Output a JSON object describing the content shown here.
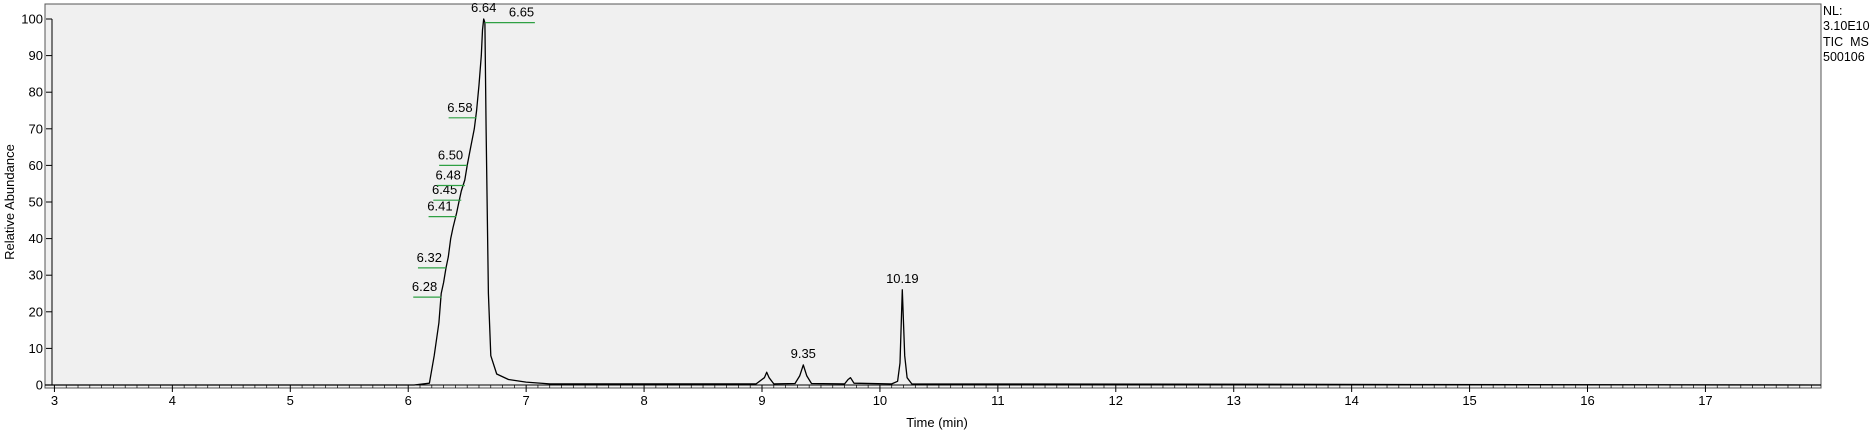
{
  "chart_data": {
    "type": "line",
    "title": "",
    "xlabel": "Time (min)",
    "ylabel": "Relative Abundance",
    "xlim": [
      2.92,
      17.98
    ],
    "ylim": [
      0,
      100
    ],
    "x_ticks": [
      "3",
      "4",
      "5",
      "6",
      "7",
      "8",
      "9",
      "10",
      "11",
      "12",
      "13",
      "14",
      "15",
      "16",
      "17"
    ],
    "y_ticks": [
      "0",
      "10",
      "20",
      "30",
      "40",
      "50",
      "60",
      "70",
      "80",
      "90",
      "100"
    ],
    "grid": false,
    "legend": "none",
    "line_color": "#000000",
    "plot_background": "#f0f0f0",
    "marker_color": "#2ea043",
    "series": [
      {
        "name": "TIC MS 500106",
        "x": [
          2.92,
          6.05,
          6.18,
          6.22,
          6.26,
          6.28,
          6.3,
          6.32,
          6.34,
          6.36,
          6.38,
          6.41,
          6.43,
          6.45,
          6.48,
          6.5,
          6.53,
          6.56,
          6.58,
          6.6,
          6.62,
          6.63,
          6.64,
          6.65,
          6.66,
          6.68,
          6.7,
          6.75,
          6.85,
          7.0,
          7.2,
          8.95,
          9.02,
          9.04,
          9.06,
          9.1,
          9.28,
          9.32,
          9.35,
          9.38,
          9.42,
          9.7,
          9.73,
          9.75,
          9.78,
          10.1,
          10.15,
          10.17,
          10.19,
          10.21,
          10.23,
          10.27,
          17.98
        ],
        "y": [
          0,
          0,
          0.5,
          8,
          17,
          25,
          28,
          32,
          35,
          40,
          43,
          47,
          50,
          53,
          56,
          60,
          65,
          70,
          75,
          82,
          90,
          97,
          100,
          99,
          70,
          25,
          8,
          3,
          1.5,
          0.8,
          0.3,
          0.3,
          2,
          3.5,
          2,
          0.3,
          0.4,
          2.5,
          5.5,
          2.5,
          0.4,
          0.3,
          1.5,
          2,
          0.5,
          0.3,
          1,
          6,
          26,
          8,
          2,
          0.3,
          0
        ]
      }
    ],
    "peak_labels": [
      {
        "x": 6.28,
        "y": 24,
        "text": "6.28"
      },
      {
        "x": 6.32,
        "y": 32,
        "text": "6.32"
      },
      {
        "x": 6.41,
        "y": 46,
        "text": "6.41"
      },
      {
        "x": 6.45,
        "y": 50.5,
        "text": "6.45"
      },
      {
        "x": 6.48,
        "y": 54.5,
        "text": "6.48"
      },
      {
        "x": 6.5,
        "y": 60,
        "text": "6.50"
      },
      {
        "x": 6.58,
        "y": 73,
        "text": "6.58"
      },
      {
        "x": 6.64,
        "y": 100,
        "text": "6.64"
      },
      {
        "x": 6.65,
        "y": 99,
        "text": "6.65"
      },
      {
        "x": 9.35,
        "y": 5.5,
        "text": "9.35"
      },
      {
        "x": 10.19,
        "y": 26,
        "text": "10.19"
      }
    ]
  },
  "header_info": {
    "nl_label": "NL:",
    "nl_value": "3.10E10",
    "trace": "TIC  MS",
    "sample": "500106"
  }
}
